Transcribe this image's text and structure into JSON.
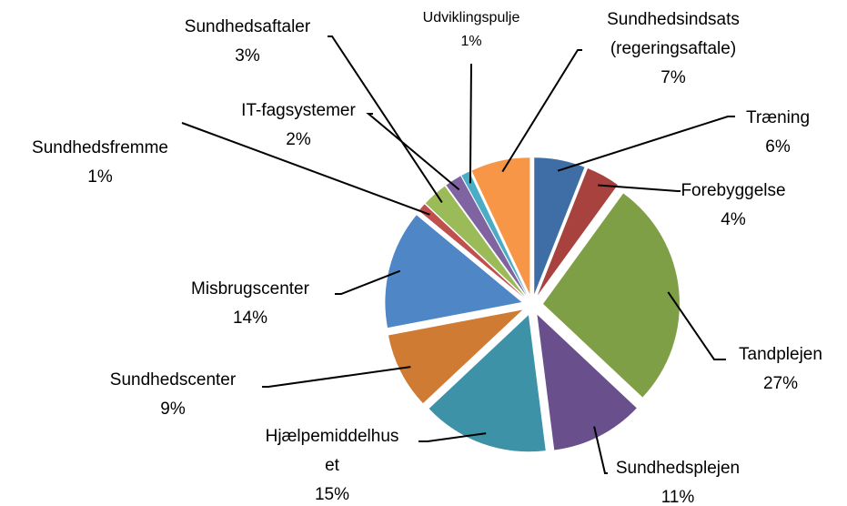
{
  "chart_data": {
    "type": "pie",
    "categories": [
      "Træning",
      "Forebyggelse",
      "Tandplejen",
      "Sundhedsplejen",
      "Hjælpemiddelhus et",
      "Sundhedscenter",
      "Misbrugscenter",
      "Sundhedsfremme",
      "Sundhedsaftaler",
      "IT-fagsystemer",
      "Udviklingspulje",
      "Sundhedsindsats (regeringsaftale)"
    ],
    "values": [
      6,
      4,
      27,
      11,
      15,
      9,
      14,
      1,
      3,
      2,
      1,
      7
    ],
    "value_labels": [
      "6%",
      "4%",
      "27%",
      "11%",
      "15%",
      "9%",
      "14%",
      "1%",
      "3%",
      "2%",
      "1%",
      "7%"
    ],
    "colors": [
      "#3f6da5",
      "#a8423f",
      "#7f9f47",
      "#6a4f8d",
      "#3d92a7",
      "#d07b34",
      "#4f86c6",
      "#c0504d",
      "#9bbb59",
      "#8064a2",
      "#4bacc6",
      "#f79646"
    ]
  }
}
